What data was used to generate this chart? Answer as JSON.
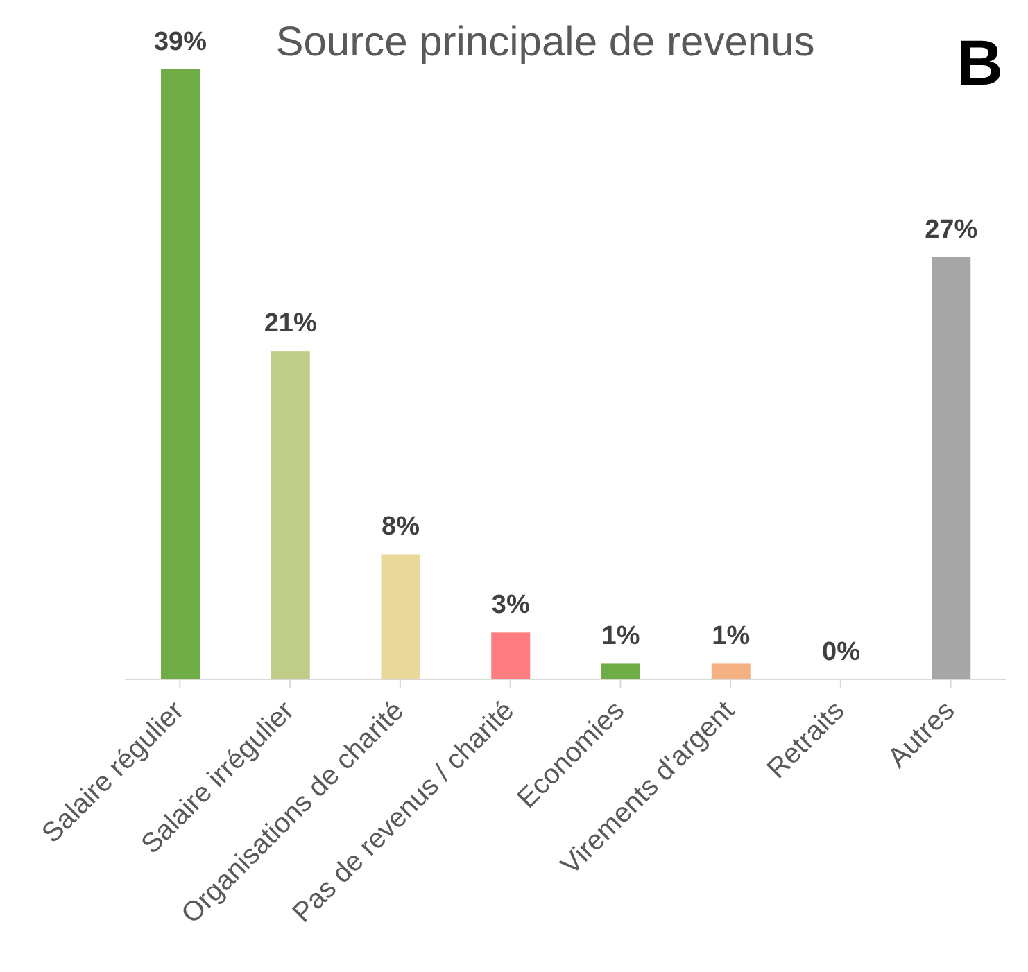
{
  "chart_data": {
    "type": "bar",
    "title": "Source principale de revenus",
    "categories": [
      "Salaire régulier",
      "Salaire irrégulier",
      "Organisations de charité",
      "Pas de revenus / charité",
      "Economies",
      "Virements d'argent",
      "Retraits",
      "Autres"
    ],
    "values": [
      39,
      21,
      8,
      3,
      1,
      1,
      0,
      27
    ],
    "colors": [
      "#70ad47",
      "#c0cc8a",
      "#ead89b",
      "#ff7c80",
      "#70ad47",
      "#f4b183",
      "#a6a6a6",
      "#a6a6a6"
    ],
    "value_labels": [
      "39%",
      "21%",
      "8%",
      "3%",
      "1%",
      "1%",
      "0%",
      "27%"
    ],
    "annotations": [
      "B"
    ]
  }
}
